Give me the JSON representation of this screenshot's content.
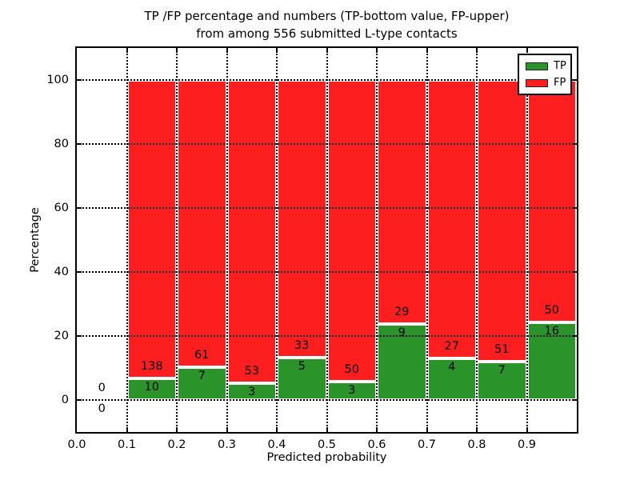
{
  "header": {
    "title_line1": "TP /FP percentage and numbers (TP-bottom value, FP-upper)",
    "title_line2": "from among 556 submitted L-type contacts"
  },
  "chart_data": {
    "type": "bar",
    "variant": "stacked-percent",
    "title": "TP /FP percentage and numbers (TP-bottom value, FP-upper) from among 556 submitted L-type contacts",
    "xlabel": "Predicted probability",
    "ylabel": "Percentage",
    "xlim": [
      0.0,
      1.0
    ],
    "ylim": [
      -10,
      110
    ],
    "yticks": [
      0,
      20,
      40,
      60,
      80,
      100
    ],
    "xtick_labels": [
      "0.0",
      "0.1",
      "0.2",
      "0.3",
      "0.4",
      "0.5",
      "0.6",
      "0.7",
      "0.8",
      "0.9"
    ],
    "grid": "dotted",
    "grid_color": "#000000",
    "bar_edge_color": "#ffffff",
    "bin_edges": [
      0.0,
      0.1,
      0.2,
      0.3,
      0.4,
      0.5,
      0.6,
      0.7,
      0.8,
      0.9,
      1.0
    ],
    "series": [
      {
        "name": "TP",
        "color": "#2a942a",
        "counts": [
          0,
          10,
          7,
          3,
          5,
          3,
          9,
          4,
          7,
          16
        ]
      },
      {
        "name": "FP",
        "color": "#fd1f1f",
        "counts": [
          0,
          138,
          61,
          53,
          33,
          50,
          29,
          27,
          51,
          50
        ]
      }
    ],
    "tp_percent_by_bin": [
      0,
      6.76,
      10.29,
      5.36,
      13.16,
      5.66,
      23.68,
      12.9,
      12.07,
      24.24
    ],
    "total_submitted": 556,
    "legend": {
      "position": "upper-right",
      "entries": [
        {
          "name": "TP",
          "color": "#2a942a"
        },
        {
          "name": "FP",
          "color": "#fd1f1f"
        }
      ]
    }
  }
}
